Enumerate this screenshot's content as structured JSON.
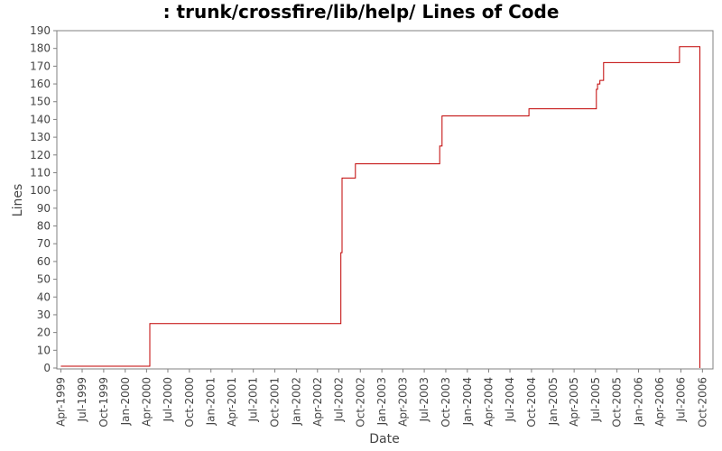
{
  "chart_data": {
    "type": "line",
    "title": ": trunk/crossfire/lib/help/ Lines of Code",
    "xlabel": "Date",
    "ylabel": "Lines",
    "ylim": [
      0,
      190
    ],
    "yticks": [
      0,
      10,
      20,
      30,
      40,
      50,
      60,
      70,
      80,
      90,
      100,
      110,
      120,
      130,
      140,
      150,
      160,
      170,
      180,
      190
    ],
    "xlim": [
      "1999-03-15",
      "2006-11-15"
    ],
    "xticks": [
      {
        "date": "1999-04-01",
        "label": "Apr-1999"
      },
      {
        "date": "1999-07-01",
        "label": "Jul-1999"
      },
      {
        "date": "1999-10-01",
        "label": "Oct-1999"
      },
      {
        "date": "2000-01-01",
        "label": "Jan-2000"
      },
      {
        "date": "2000-04-01",
        "label": "Apr-2000"
      },
      {
        "date": "2000-07-01",
        "label": "Jul-2000"
      },
      {
        "date": "2000-10-01",
        "label": "Oct-2000"
      },
      {
        "date": "2001-01-01",
        "label": "Jan-2001"
      },
      {
        "date": "2001-04-01",
        "label": "Apr-2001"
      },
      {
        "date": "2001-07-01",
        "label": "Jul-2001"
      },
      {
        "date": "2001-10-01",
        "label": "Oct-2001"
      },
      {
        "date": "2002-01-01",
        "label": "Jan-2002"
      },
      {
        "date": "2002-04-01",
        "label": "Apr-2002"
      },
      {
        "date": "2002-07-01",
        "label": "Jul-2002"
      },
      {
        "date": "2002-10-01",
        "label": "Oct-2002"
      },
      {
        "date": "2003-01-01",
        "label": "Jan-2003"
      },
      {
        "date": "2003-04-01",
        "label": "Apr-2003"
      },
      {
        "date": "2003-07-01",
        "label": "Jul-2003"
      },
      {
        "date": "2003-10-01",
        "label": "Oct-2003"
      },
      {
        "date": "2004-01-01",
        "label": "Jan-2004"
      },
      {
        "date": "2004-04-01",
        "label": "Apr-2004"
      },
      {
        "date": "2004-07-01",
        "label": "Jul-2004"
      },
      {
        "date": "2004-10-01",
        "label": "Oct-2004"
      },
      {
        "date": "2005-01-01",
        "label": "Jan-2005"
      },
      {
        "date": "2005-04-01",
        "label": "Apr-2005"
      },
      {
        "date": "2005-07-01",
        "label": "Jul-2005"
      },
      {
        "date": "2005-10-01",
        "label": "Oct-2005"
      },
      {
        "date": "2006-01-01",
        "label": "Jan-2006"
      },
      {
        "date": "2006-04-01",
        "label": "Apr-2006"
      },
      {
        "date": "2006-07-01",
        "label": "Jul-2006"
      },
      {
        "date": "2006-10-01",
        "label": "Oct-2006"
      }
    ],
    "grid": false,
    "series_color": "#c00000",
    "points": [
      {
        "x": "1999-04-01",
        "y": 1
      },
      {
        "x": "2000-04-15",
        "y": 25
      },
      {
        "x": "2002-07-10",
        "y": 65
      },
      {
        "x": "2002-07-15",
        "y": 107
      },
      {
        "x": "2002-09-10",
        "y": 115
      },
      {
        "x": "2003-09-05",
        "y": 125
      },
      {
        "x": "2003-09-15",
        "y": 142
      },
      {
        "x": "2004-09-20",
        "y": 146
      },
      {
        "x": "2005-07-05",
        "y": 157
      },
      {
        "x": "2005-07-10",
        "y": 160
      },
      {
        "x": "2005-07-20",
        "y": 162
      },
      {
        "x": "2005-08-05",
        "y": 172
      },
      {
        "x": "2006-06-25",
        "y": 181
      },
      {
        "x": "2006-09-20",
        "y": 0
      }
    ]
  }
}
